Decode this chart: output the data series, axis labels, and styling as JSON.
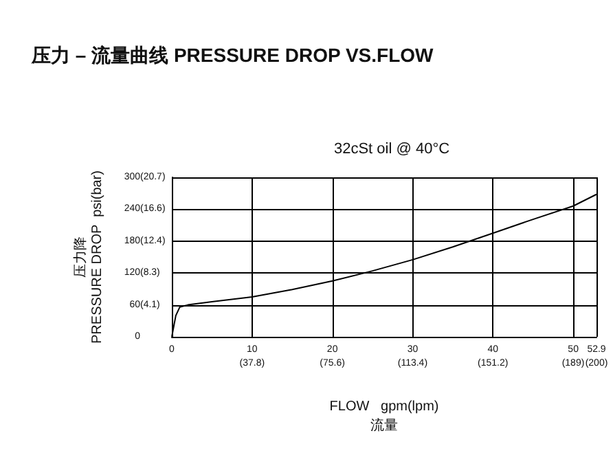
{
  "chart_data": {
    "type": "line",
    "title": "压力 – 流量曲线 PRESSURE DROP VS.FLOW",
    "subtitle": "32cSt oil @ 40°C",
    "xlabel": "FLOW   gpm(lpm)\n流量",
    "ylabel": "压力降\nPRESSURE DROP  psi(bar)",
    "x": [
      0,
      0.5,
      1,
      2,
      5,
      10,
      15,
      20,
      25,
      30,
      35,
      40,
      45,
      50,
      52.9
    ],
    "series": [
      {
        "color": "#000000",
        "values": [
          0,
          40,
          56,
          60,
          66,
          75,
          89,
          105,
          124,
          145,
          169,
          195,
          221,
          246,
          268
        ]
      }
    ],
    "xlim": [
      0,
      52.9
    ],
    "ylim": [
      0,
      300
    ],
    "xticks": [
      0,
      10,
      20,
      30,
      40,
      50,
      52.9
    ],
    "x2lim": [
      0,
      200
    ],
    "x2ticks": [
      {
        "value": 37.8,
        "label": "(37.8)"
      },
      {
        "value": 75.6,
        "label": "(75.6)"
      },
      {
        "value": 113.4,
        "label": "(113.4)"
      },
      {
        "value": 151.2,
        "label": "(151.2)"
      },
      {
        "value": 189,
        "label": "(189)"
      },
      {
        "value": 200,
        "label": "(200)"
      }
    ],
    "yticks": [
      0,
      60,
      120,
      180,
      240,
      300
    ],
    "y2lim": [
      0,
      20.7
    ],
    "y2ticks": [
      {
        "value": 4.1,
        "label": "(4.1)"
      },
      {
        "value": 8.3,
        "label": "(8.3)"
      },
      {
        "value": 12.4,
        "label": "(12.4)"
      },
      {
        "value": 16.6,
        "label": "(16.6)"
      },
      {
        "value": 20.7,
        "label": "(20.7)"
      }
    ],
    "grid": true,
    "marker": "none",
    "line_style": "solid"
  }
}
